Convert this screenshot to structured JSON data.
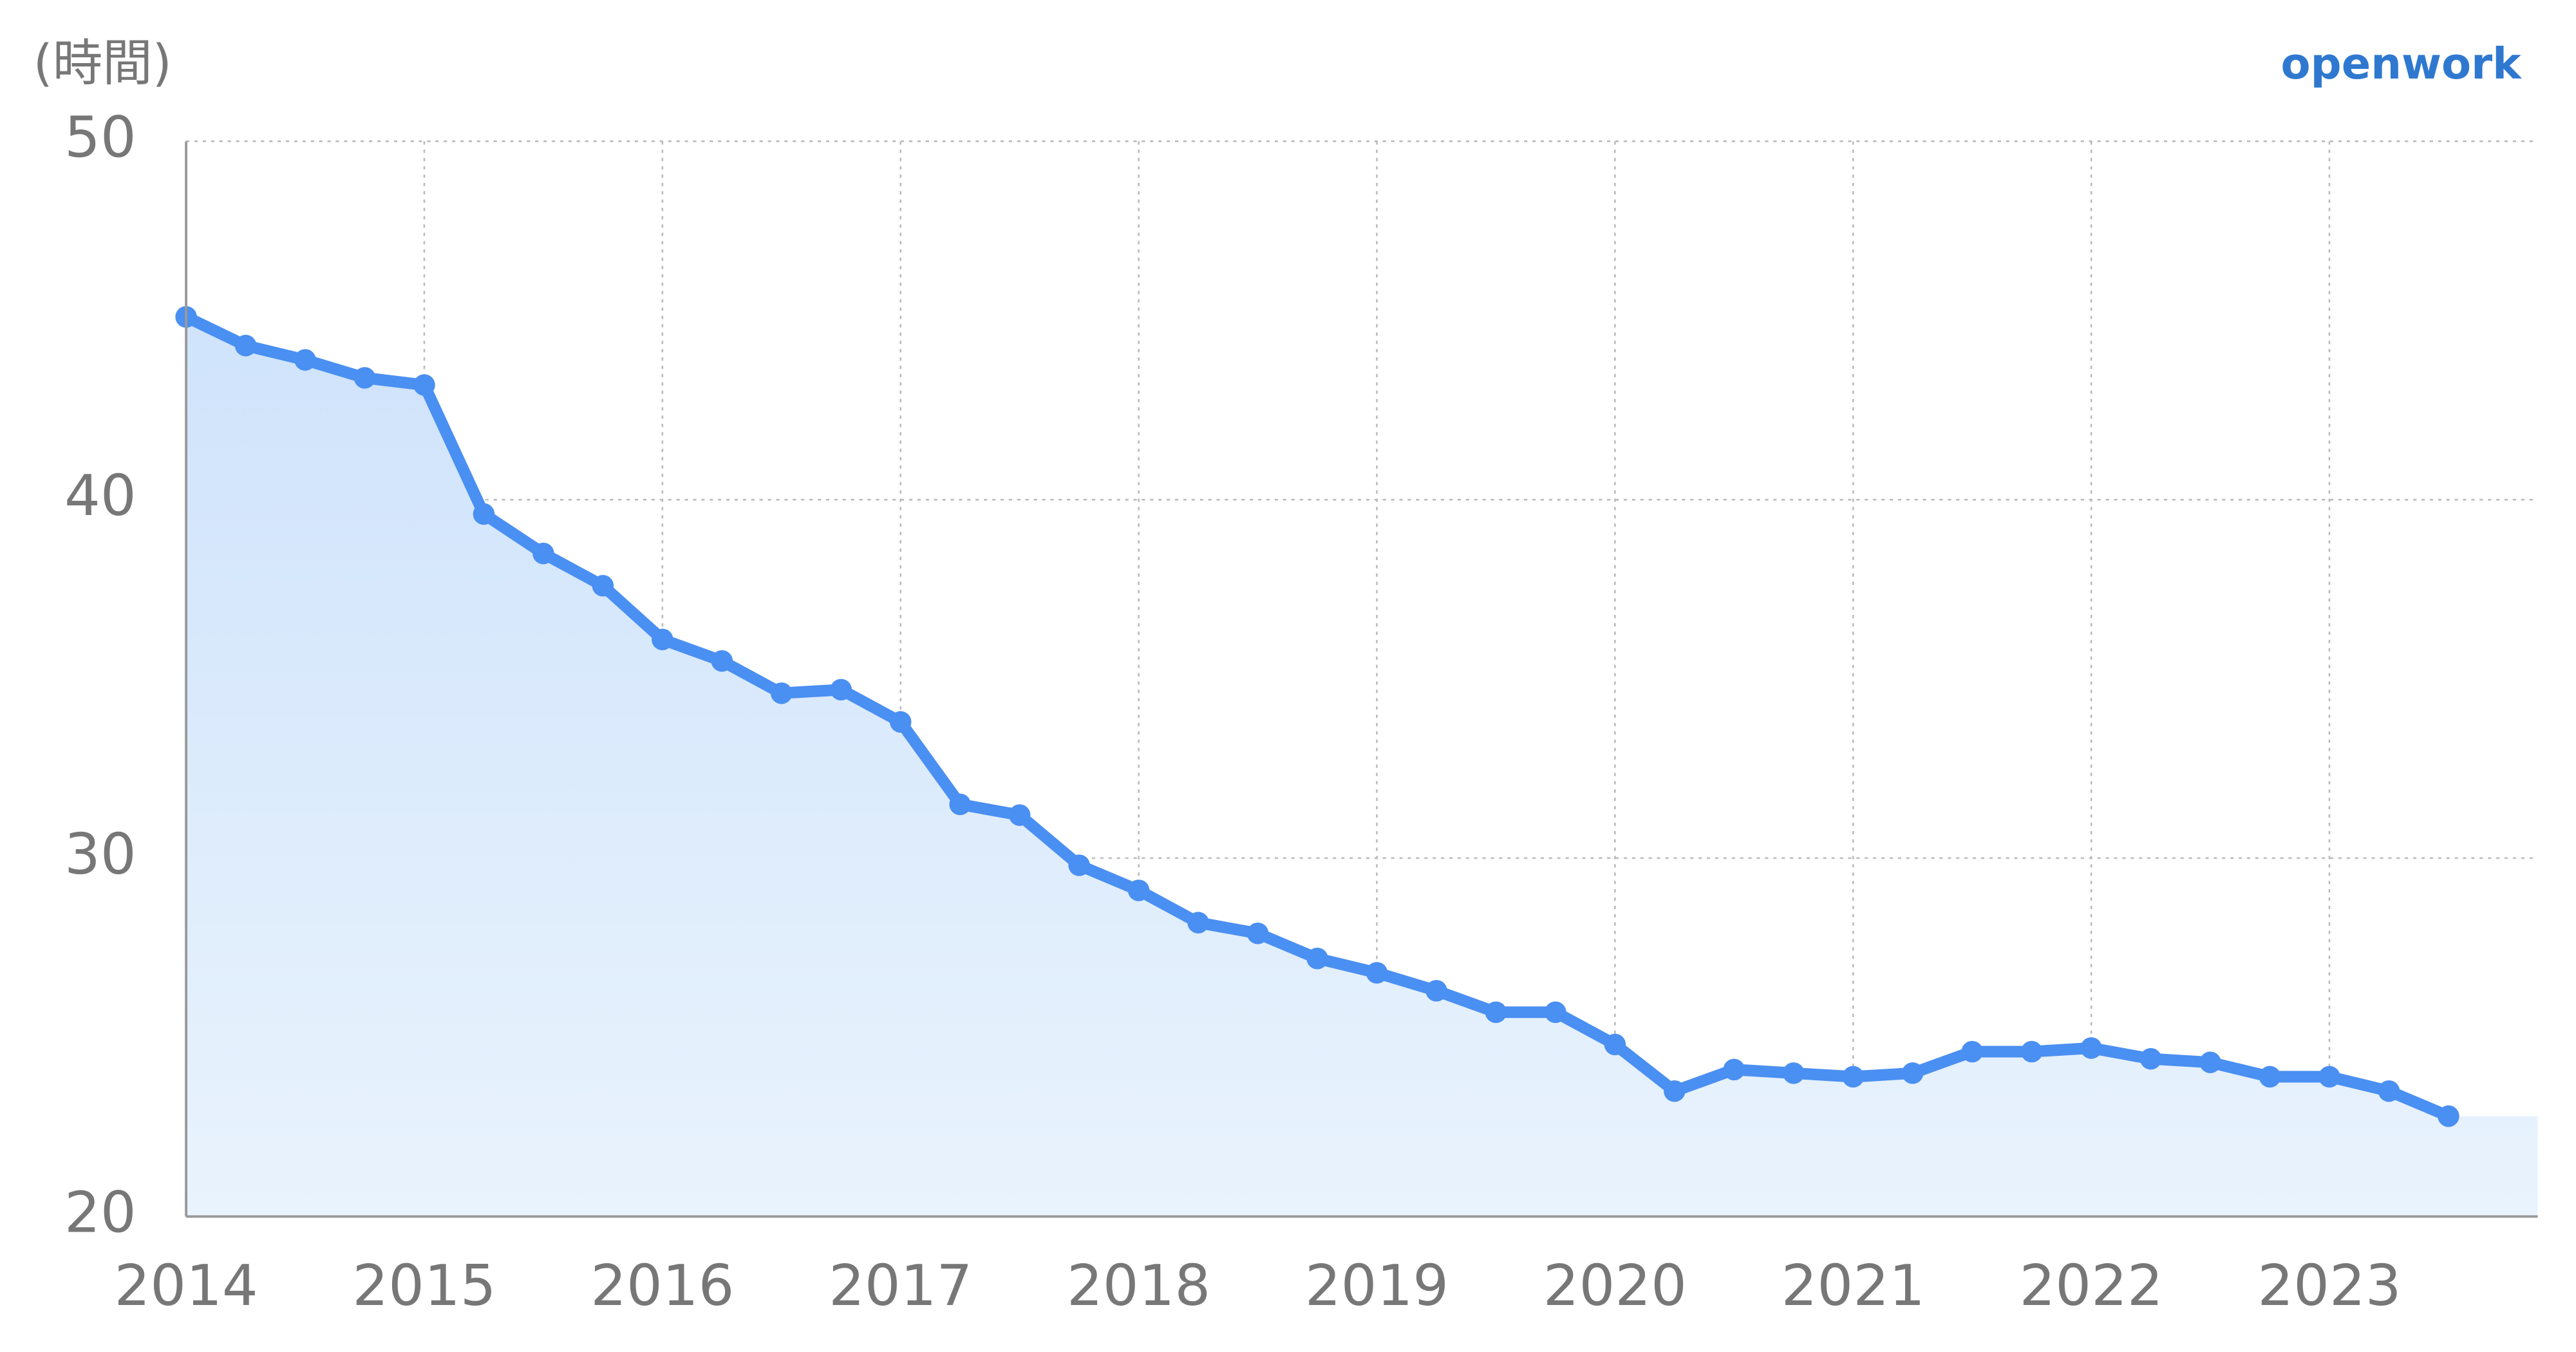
{
  "chart_data": {
    "type": "line",
    "y_label": "(時間)",
    "brand": "openwork",
    "x": [
      2014,
      2014.25,
      2014.5,
      2014.75,
      2015,
      2015.25,
      2015.5,
      2015.75,
      2016,
      2016.25,
      2016.5,
      2016.75,
      2017,
      2017.25,
      2017.5,
      2017.75,
      2018,
      2018.25,
      2018.5,
      2018.75,
      2019,
      2019.25,
      2019.5,
      2019.75,
      2020,
      2020.25,
      2020.5,
      2020.75,
      2021,
      2021.25,
      2021.5,
      2021.75,
      2022,
      2022.25,
      2022.5,
      2022.75,
      2023,
      2023.25,
      2023.5
    ],
    "series": [
      {
        "color": "#4a8ff2",
        "values": [
          45.1,
          44.3,
          43.9,
          43.4,
          43.2,
          39.6,
          38.5,
          37.6,
          36.1,
          35.5,
          34.6,
          34.7,
          33.8,
          31.5,
          31.2,
          29.8,
          29.1,
          28.2,
          27.9,
          27.2,
          26.8,
          26.3,
          25.7,
          25.7,
          24.8,
          23.5,
          24.1,
          24.0,
          23.9,
          24.0,
          24.6,
          24.6,
          24.7,
          24.4,
          24.3,
          23.9,
          23.9,
          23.5,
          22.8
        ]
      }
    ],
    "xlim": [
      2014,
      2023.875
    ],
    "xticks": [
      2014,
      2015,
      2016,
      2017,
      2018,
      2019,
      2020,
      2021,
      2022,
      2023
    ],
    "ylim": [
      20,
      50
    ],
    "yticks": [
      20,
      30,
      40,
      50
    ],
    "grid": true,
    "area": true
  }
}
